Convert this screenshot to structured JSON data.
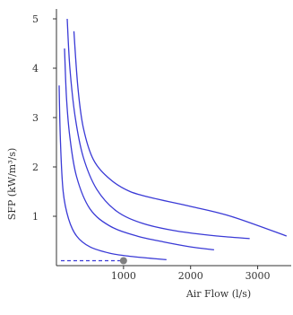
{
  "chart_data": {
    "type": "line",
    "title": "",
    "xlabel": "Air Flow (l/s)",
    "ylabel": "SFP (kW/m³/s)",
    "xlim": [
      0,
      3500
    ],
    "ylim": [
      0,
      5.2
    ],
    "xticks": [
      1000,
      2000,
      3000
    ],
    "xtick_labels": [
      "1000",
      "2000",
      "3000"
    ],
    "yticks": [
      1,
      2,
      3,
      4,
      5
    ],
    "ytick_labels": [
      "1",
      "2",
      "3",
      "4",
      "5"
    ],
    "grid": {
      "x": false,
      "y": false
    },
    "legend": "none",
    "series": [
      {
        "x": [
          40,
          60,
          100,
          180,
          300,
          500,
          800,
          1100,
          1400,
          1640
        ],
        "y": [
          3.65,
          2.5,
          1.5,
          0.95,
          0.6,
          0.38,
          0.25,
          0.19,
          0.15,
          0.12
        ]
      },
      {
        "x": [
          120,
          150,
          200,
          300,
          500,
          800,
          1200,
          1600,
          2000,
          2350
        ],
        "y": [
          4.4,
          3.4,
          2.6,
          1.8,
          1.15,
          0.8,
          0.6,
          0.48,
          0.38,
          0.32
        ]
      },
      {
        "x": [
          160,
          200,
          280,
          400,
          600,
          900,
          1300,
          1800,
          2400,
          2880
        ],
        "y": [
          5.0,
          4.0,
          3.0,
          2.2,
          1.55,
          1.1,
          0.85,
          0.7,
          0.6,
          0.55
        ]
      },
      {
        "x": [
          260,
          320,
          400,
          550,
          800,
          1100,
          1500,
          2000,
          2600,
          3430
        ],
        "y": [
          4.75,
          3.6,
          2.8,
          2.15,
          1.75,
          1.5,
          1.35,
          1.2,
          1.0,
          0.6
        ]
      }
    ],
    "operating_point": {
      "x": 1000,
      "y": 0.1
    },
    "colors": {
      "curve": "#3a3ad6",
      "axis": "#333333",
      "marker": "#808080"
    }
  }
}
